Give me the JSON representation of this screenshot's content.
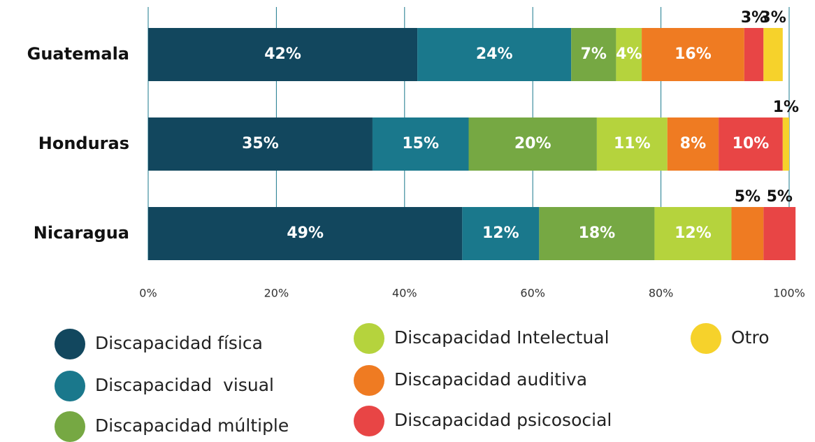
{
  "chart_data": {
    "type": "bar",
    "orientation": "horizontal",
    "stacked": true,
    "categories": [
      "Guatemala",
      "Honduras",
      "Nicaragua"
    ],
    "series": [
      {
        "name": "Discapacidad física",
        "color": "#12475e",
        "values": [
          42,
          35,
          49
        ],
        "value_labels": [
          "42%",
          "35%",
          "49%"
        ]
      },
      {
        "name": "Discapacidad  visual",
        "color": "#1a788c",
        "values": [
          24,
          15,
          12
        ],
        "value_labels": [
          "24%",
          "15%",
          "12%"
        ]
      },
      {
        "name": "Discapacidad múltiple",
        "color": "#76a843",
        "values": [
          7,
          20,
          18
        ],
        "value_labels": [
          "7%",
          "20%",
          "18%"
        ]
      },
      {
        "name": "Discapacidad Intelectual",
        "color": "#b5d33d",
        "values": [
          4,
          11,
          12
        ],
        "value_labels": [
          "4%",
          "11%",
          "12%"
        ]
      },
      {
        "name": "Discapacidad auditiva",
        "color": "#ef7b22",
        "values": [
          16,
          8,
          5
        ],
        "value_labels": [
          "16%",
          "8%",
          "5%"
        ]
      },
      {
        "name": "Discapacidad psicosocial",
        "color": "#e84545",
        "values": [
          3,
          10,
          5
        ],
        "value_labels": [
          "3%",
          "10%",
          "5%"
        ]
      },
      {
        "name": "Otro",
        "color": "#f6d22b",
        "values": [
          3,
          1,
          null
        ],
        "value_labels": [
          "3%",
          "1%",
          null
        ]
      }
    ],
    "xlim": [
      0,
      100
    ],
    "xticks": [
      {
        "value": 0,
        "label": "0%"
      },
      {
        "value": 20,
        "label": "20%"
      },
      {
        "value": 40,
        "label": "40%"
      },
      {
        "value": 60,
        "label": "60%"
      },
      {
        "value": 80,
        "label": "80%"
      },
      {
        "value": 100,
        "label": "100%"
      }
    ],
    "grid": true
  }
}
